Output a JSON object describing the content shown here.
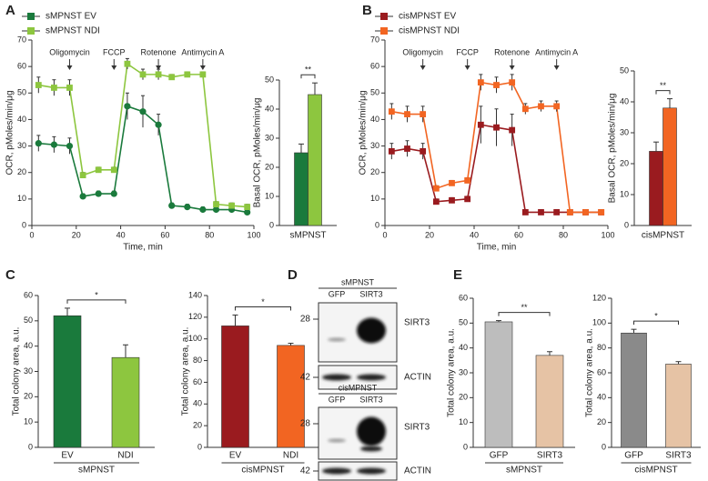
{
  "panel_labels": [
    "A",
    "B",
    "C",
    "D",
    "E"
  ],
  "chart_data": [
    {
      "type": "line",
      "xlabel": "Time, min",
      "ylabel": "OCR, pMoles/min/μg",
      "x": [
        3,
        10,
        17,
        23,
        30,
        37,
        43,
        50,
        57,
        63,
        70,
        77,
        83,
        90,
        97
      ],
      "xlim": [
        0,
        100
      ],
      "xticks": [
        0,
        20,
        40,
        60,
        80,
        100
      ],
      "ylim": [
        0,
        70
      ],
      "yticks": [
        0,
        10,
        20,
        30,
        40,
        50,
        60,
        70
      ],
      "legend": true,
      "annotations": [
        {
          "text": "Oligomycin",
          "x": 17
        },
        {
          "text": "FCCP",
          "x": 37
        },
        {
          "text": "Rotenone",
          "x": 57
        },
        {
          "text": "Antimycin A",
          "x": 77
        }
      ],
      "series": [
        {
          "name": "sMPNST EV",
          "color": "#1a7a3c",
          "marker": "circle",
          "values": [
            31,
            30.5,
            30,
            11,
            12,
            12,
            45,
            43,
            38,
            7.5,
            7,
            6,
            6,
            6,
            5
          ],
          "errors": [
            3,
            3,
            3,
            1,
            1,
            1,
            5,
            6,
            4,
            1,
            1,
            1,
            1,
            1,
            1
          ]
        },
        {
          "name": "sMPNST NDI",
          "color": "#8dc63f",
          "marker": "square",
          "values": [
            53,
            52,
            52,
            19,
            21,
            21,
            61,
            57,
            57,
            56,
            57,
            57,
            8,
            7.5,
            7
          ],
          "errors": [
            3,
            3,
            3,
            1,
            1,
            1,
            2,
            2,
            2,
            1,
            1,
            1,
            1,
            1,
            1
          ]
        }
      ]
    },
    {
      "type": "bar",
      "ylabel": "Basal OCR, pMoles/min/μg",
      "xlabel": "sMPNST",
      "categories": [
        null,
        null
      ],
      "values": [
        25,
        45
      ],
      "errors": [
        3,
        4
      ],
      "colors": [
        "#1a7a3c",
        "#8dc63f"
      ],
      "significance": "**",
      "ylim": [
        0,
        50
      ],
      "yticks": [
        0,
        10,
        20,
        30,
        40,
        50
      ]
    },
    {
      "type": "line",
      "xlabel": "Time, min",
      "ylabel": "OCR, pMoles/min/μg",
      "x": [
        3,
        10,
        17,
        23,
        30,
        37,
        43,
        50,
        57,
        63,
        70,
        77,
        83,
        90,
        97
      ],
      "xlim": [
        0,
        100
      ],
      "xticks": [
        0,
        20,
        40,
        60,
        80,
        100
      ],
      "ylim": [
        0,
        70
      ],
      "yticks": [
        0,
        10,
        20,
        30,
        40,
        50,
        60,
        70
      ],
      "legend": true,
      "annotations": [
        {
          "text": "Oligomycin",
          "x": 17
        },
        {
          "text": "FCCP",
          "x": 37
        },
        {
          "text": "Rotenone",
          "x": 57
        },
        {
          "text": "Antimycin A",
          "x": 77
        }
      ],
      "series": [
        {
          "name": "cisMPNST EV",
          "color": "#9a1b1f",
          "marker": "square",
          "values": [
            28,
            29,
            28,
            9,
            9.5,
            10,
            38,
            37,
            36,
            5,
            5,
            5,
            5,
            5,
            5
          ],
          "errors": [
            3,
            3,
            3,
            1,
            1,
            1,
            7,
            7,
            6,
            1,
            1,
            1,
            1,
            1,
            1
          ]
        },
        {
          "name": "cisMPNST NDI",
          "color": "#f26522",
          "marker": "square",
          "values": [
            43,
            42,
            42,
            14,
            16,
            17,
            54,
            53,
            54,
            44,
            45,
            45,
            5,
            5,
            5
          ],
          "errors": [
            3,
            3,
            3,
            1,
            1,
            1,
            3,
            3,
            3,
            2,
            2,
            2,
            1,
            1,
            1
          ]
        }
      ]
    },
    {
      "type": "bar",
      "ylabel": "Basal OCR, pMoles/min/μg",
      "xlabel": "cisMPNST",
      "categories": [
        null,
        null
      ],
      "values": [
        24,
        38
      ],
      "errors": [
        3,
        3
      ],
      "colors": [
        "#9a1b1f",
        "#f26522"
      ],
      "significance": "**",
      "ylim": [
        0,
        50
      ],
      "yticks": [
        0,
        10,
        20,
        30,
        40,
        50
      ]
    },
    {
      "type": "bar",
      "ylabel": "Total colony area, a.u.",
      "xlabel": "sMPNST",
      "categories": [
        "EV",
        "NDI"
      ],
      "values": [
        52,
        35.5
      ],
      "errors": [
        3,
        5
      ],
      "colors": [
        "#1a7a3c",
        "#8dc63f"
      ],
      "significance": "*",
      "ylim": [
        0,
        60
      ],
      "yticks": [
        0,
        10,
        20,
        30,
        40,
        50,
        60
      ]
    },
    {
      "type": "bar",
      "ylabel": "Total colony area, a.u.",
      "xlabel": "cisMPNST",
      "categories": [
        "EV",
        "NDI"
      ],
      "values": [
        112,
        94
      ],
      "errors": [
        10,
        2
      ],
      "colors": [
        "#9a1b1f",
        "#f26522"
      ],
      "significance": "*",
      "ylim": [
        0,
        140
      ],
      "yticks": [
        0,
        20,
        40,
        60,
        80,
        100,
        120,
        140
      ]
    },
    {
      "type": "bar",
      "ylabel": "Total colony area, a.u.",
      "xlabel": "sMPNST",
      "categories": [
        "GFP",
        "SIRT3"
      ],
      "values": [
        50.5,
        37
      ],
      "errors": [
        0.5,
        1.5
      ],
      "colors": [
        "#bdbdbd",
        "#e6c3a5"
      ],
      "significance": "**",
      "ylim": [
        0,
        60
      ],
      "yticks": [
        0,
        10,
        20,
        30,
        40,
        50,
        60
      ]
    },
    {
      "type": "bar",
      "ylabel": "Total colony area, a.u.",
      "xlabel": "cisMPNST",
      "categories": [
        "GFP",
        "SIRT3"
      ],
      "values": [
        92,
        67
      ],
      "errors": [
        3,
        2
      ],
      "colors": [
        "#8a8a8a",
        "#e6c3a5"
      ],
      "significance": "*",
      "ylim": [
        0,
        120
      ],
      "yticks": [
        0,
        20,
        40,
        60,
        80,
        100,
        120
      ]
    }
  ],
  "blots": [
    {
      "title": "sMPNST",
      "lanes": [
        "GFP",
        "SIRT3"
      ],
      "rows": [
        {
          "marker": "28",
          "protein": "SIRT3"
        },
        {
          "marker": "42",
          "protein": "ACTIN"
        }
      ]
    },
    {
      "title": "cisMPNST",
      "lanes": [
        "GFP",
        "SIRT3"
      ],
      "rows": [
        {
          "marker": "28",
          "protein": "SIRT3"
        },
        {
          "marker": "42",
          "protein": "ACTIN"
        }
      ]
    }
  ]
}
